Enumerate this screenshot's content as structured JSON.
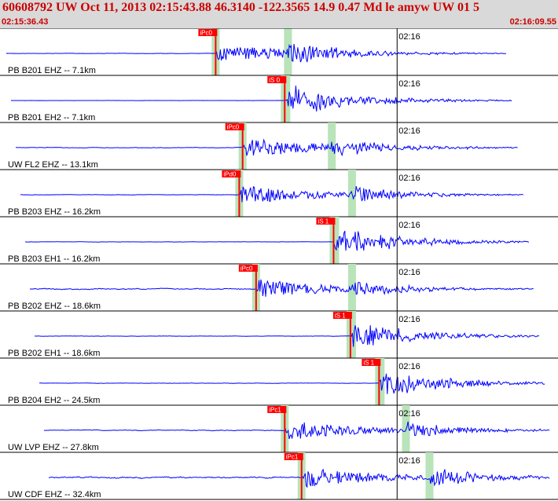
{
  "header": {
    "title": "60608792 UW Oct 11, 2013 02:15:43.88   46.3140 -122.3565 14.9 0.47 Md le amyw UW 01   5",
    "start_time": "02:15:36.43",
    "end_time": "02:16:09.55"
  },
  "colors": {
    "trace": "#0000ff",
    "pick": "#ff0000",
    "window": "#b9e3b9",
    "header_bg": "#d9d9d9",
    "header_text": "#cc0000"
  },
  "chart_data": {
    "type": "line",
    "title": "60608792 UW Oct 11, 2013 02:15:43.88   46.3140 -122.3565 14.9 0.47 Md le amyw UW 01   5",
    "x_range": [
      "02:15:36.43",
      "02:16:09.55"
    ],
    "time_mark": "02:16",
    "time_mark_seconds": 23.57,
    "duration_seconds": 33.12,
    "traces": [
      {
        "label": "PB B201 EHZ -- 7.1km",
        "pick": "iPc0",
        "pick_s": 12.8,
        "s_s": 17.0,
        "noise": 0.1,
        "coda": 0.9
      },
      {
        "label": "PB B201 EH2 -- 7.1km",
        "pick": "iS 0",
        "pick_s": 16.9,
        "s_s": 16.9,
        "noise": 0.05,
        "coda": 0.8
      },
      {
        "label": "UW FL2 EHZ -- 13.1km",
        "pick": "iPc0",
        "pick_s": 14.4,
        "s_s": 19.6,
        "noise": 0.22,
        "coda": 0.8
      },
      {
        "label": "PB B203 EHZ -- 16.2km",
        "pick": "iPd0",
        "pick_s": 14.2,
        "s_s": 20.8,
        "noise": 0.12,
        "coda": 0.7
      },
      {
        "label": "PB B203 EH1 -- 16.2km",
        "pick": "iS 1",
        "pick_s": 19.8,
        "s_s": 19.8,
        "noise": 0.1,
        "coda": 0.6
      },
      {
        "label": "PB B202 EHZ -- 18.6km",
        "pick": "iPc0",
        "pick_s": 15.2,
        "s_s": 20.8,
        "noise": 0.4,
        "coda": 0.6
      },
      {
        "label": "PB B202 EH1 -- 18.6km",
        "pick": "iS 1",
        "pick_s": 20.8,
        "s_s": 20.8,
        "noise": 0.12,
        "coda": 0.6
      },
      {
        "label": "PB B204 EH2 -- 24.5km",
        "pick": "iS 1",
        "pick_s": 22.5,
        "s_s": 22.5,
        "noise": 0.15,
        "coda": 0.5
      },
      {
        "label": "UW LVP EHZ -- 27.8km",
        "pick": "iPc1",
        "pick_s": 16.9,
        "s_s": 24.0,
        "noise": 0.3,
        "coda": 0.7
      },
      {
        "label": "UW CDF EHZ -- 32.4km",
        "pick": "iPc1",
        "pick_s": 17.9,
        "s_s": 25.4,
        "noise": 0.55,
        "coda": 0.8
      }
    ]
  }
}
